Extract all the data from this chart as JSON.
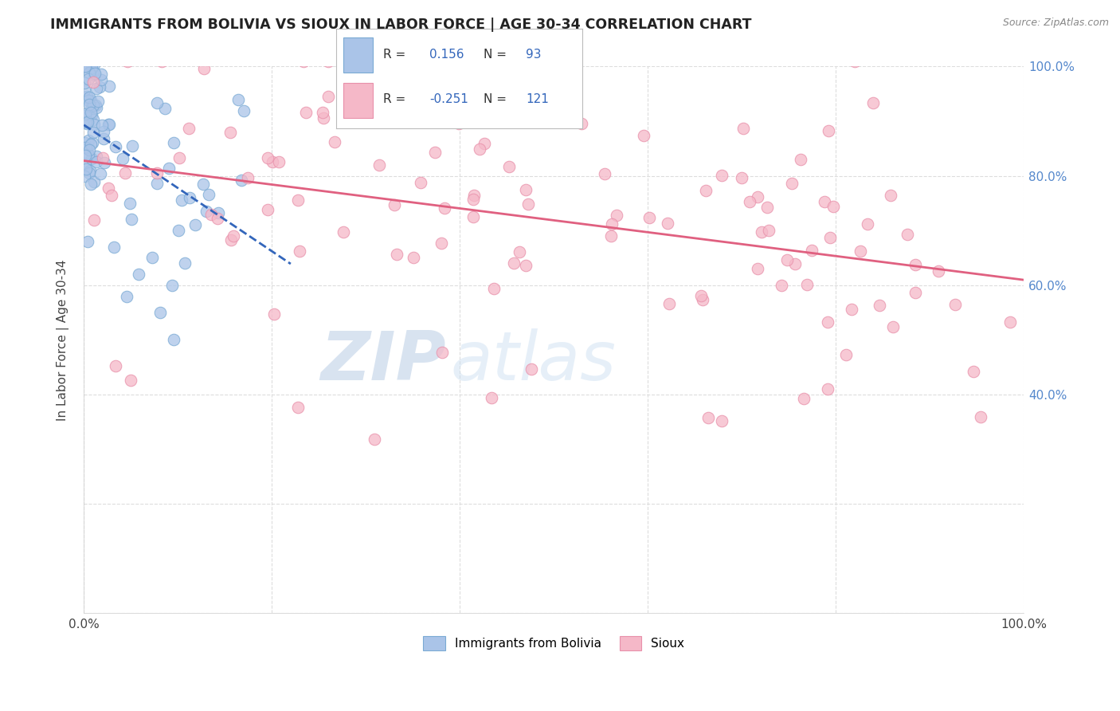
{
  "title": "IMMIGRANTS FROM BOLIVIA VS SIOUX IN LABOR FORCE | AGE 30-34 CORRELATION CHART",
  "source": "Source: ZipAtlas.com",
  "ylabel": "In Labor Force | Age 30-34",
  "xlim": [
    0.0,
    1.0
  ],
  "ylim": [
    0.0,
    1.0
  ],
  "bolivia_R": 0.156,
  "bolivia_N": 93,
  "sioux_R": -0.251,
  "sioux_N": 121,
  "bolivia_color": "#aac4e8",
  "bolivia_edge_color": "#7aaad4",
  "sioux_color": "#f5b8c8",
  "sioux_edge_color": "#e890aa",
  "bolivia_line_color": "#3366bb",
  "sioux_line_color": "#e06080",
  "watermark_zip": "ZIP",
  "watermark_atlas": "atlas",
  "background_color": "#ffffff",
  "grid_color": "#dddddd",
  "right_tick_color": "#5588cc",
  "title_color": "#222222",
  "source_color": "#888888",
  "ylabel_color": "#444444"
}
